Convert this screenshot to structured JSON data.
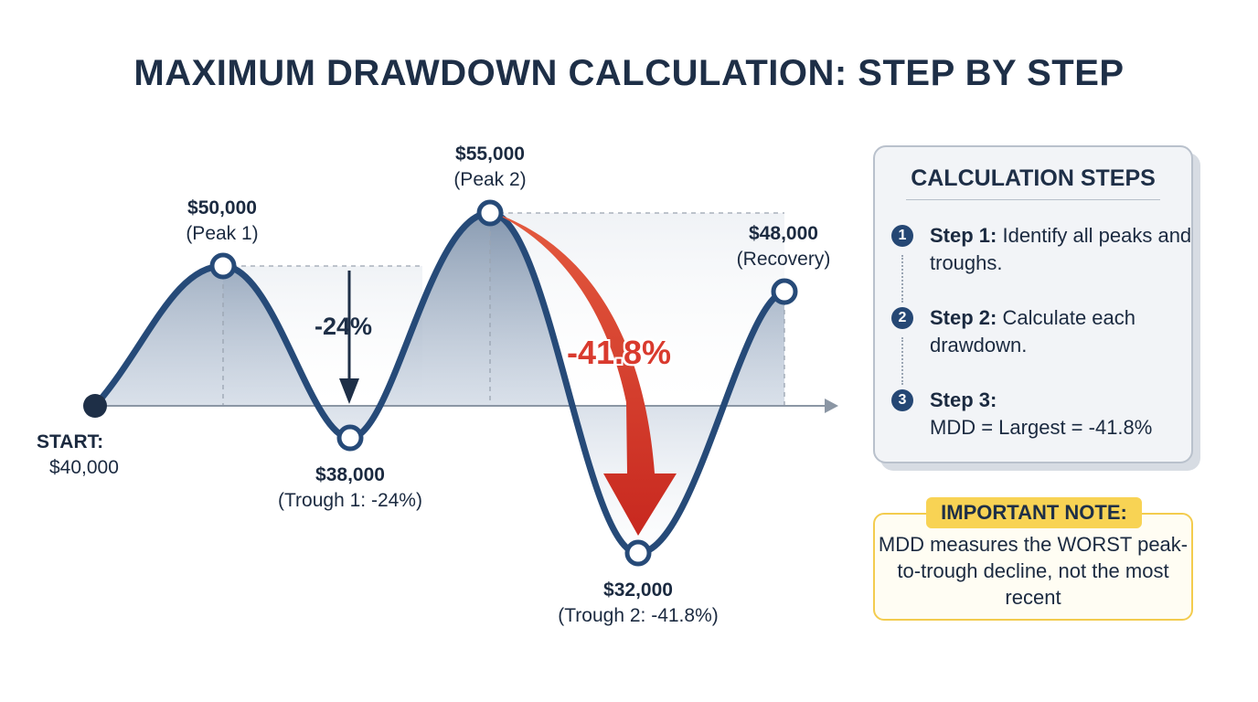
{
  "title": "MAXIMUM DRAWDOWN CALCULATION: STEP BY STEP",
  "diagram": {
    "points": [
      {
        "id": "start",
        "value_label": "START:",
        "caption": "$40,000"
      },
      {
        "id": "peak1",
        "value_label": "$50,000",
        "caption": "(Peak 1)"
      },
      {
        "id": "trough1",
        "value_label": "$38,000",
        "caption": "(Trough 1: -24%)"
      },
      {
        "id": "peak2",
        "value_label": "$55,000",
        "caption": "(Peak 2)"
      },
      {
        "id": "trough2",
        "value_label": "$32,000",
        "caption": "(Trough 2: -41.8%)"
      },
      {
        "id": "recovery",
        "value_label": "$48,000",
        "caption": "(Recovery)"
      }
    ],
    "drawdown_1": "-24%",
    "drawdown_2": "-41.8%",
    "colors": {
      "line": "#264a78",
      "arrow_red": "#d93a2e",
      "fill_top": "#9fb1c7"
    }
  },
  "steps_panel": {
    "title": "CALCULATION STEPS",
    "steps": [
      {
        "number": "1",
        "label": "Step 1:",
        "text": " Identify all peaks and troughs."
      },
      {
        "number": "2",
        "label": "Step 2:",
        "text": " Calculate each drawdown."
      },
      {
        "number": "3",
        "label": "Step 3:",
        "text": "MDD = Largest = -41.8%"
      }
    ]
  },
  "note": {
    "badge": "IMPORTANT NOTE:",
    "text": "MDD measures the WORST peak-to-trough decline, not the most recent"
  }
}
